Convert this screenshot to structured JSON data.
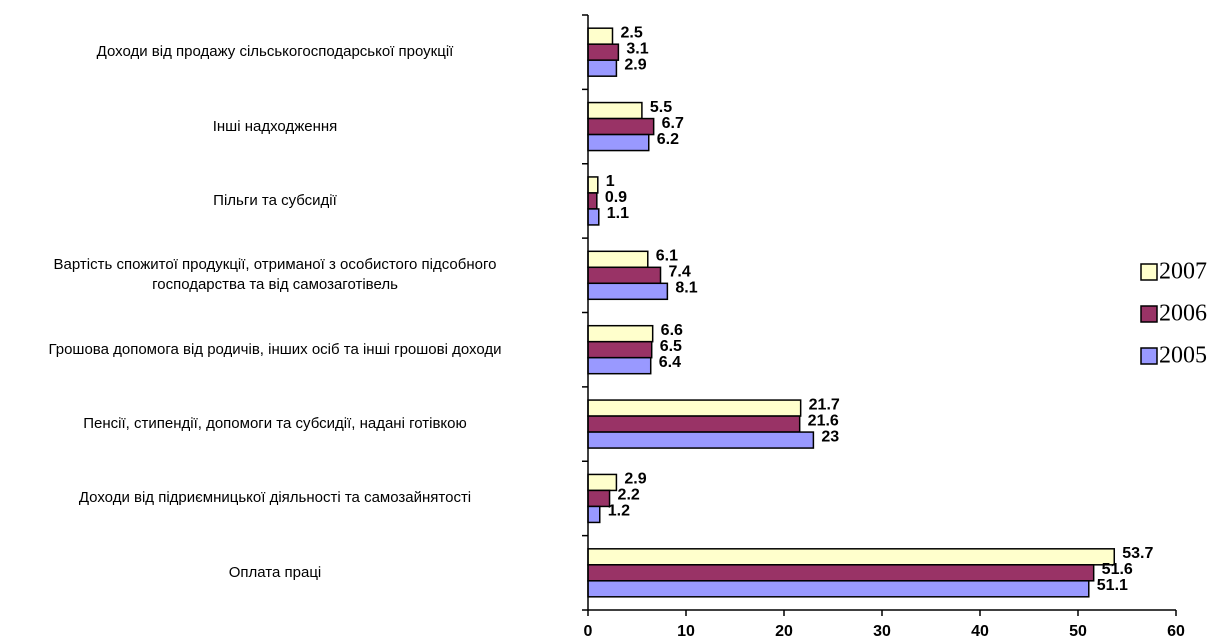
{
  "chart_data": {
    "type": "bar",
    "orientation": "horizontal",
    "categories": [
      "Доходи від продажу сільськогосподарської проукції",
      "Інші надходження",
      "Пільги та субсидії",
      "Вартість спожитої продукції, отриманої з особистого підсобного\nгосподарства та від самозаготівель",
      "Грошова допомога від родичів, інших осіб та інші грошові доходи",
      "Пенсії, стипендії, допомоги та субсидії, надані готівкою",
      "Доходи від підриємницької діяльності та самозайнятості",
      "Оплата праці"
    ],
    "series": [
      {
        "name": "2007",
        "color": "#ffffcc",
        "values": [
          2.5,
          5.5,
          1,
          6.1,
          6.6,
          21.7,
          2.9,
          53.7
        ]
      },
      {
        "name": "2006",
        "color": "#993366",
        "values": [
          3.1,
          6.7,
          0.9,
          7.4,
          6.5,
          21.6,
          2.2,
          51.6
        ]
      },
      {
        "name": "2005",
        "color": "#9999ff",
        "values": [
          2.9,
          6.2,
          1.1,
          8.1,
          6.4,
          23,
          1.2,
          51.1
        ]
      }
    ],
    "xlim": [
      0,
      60
    ],
    "xticks": [
      0,
      10,
      20,
      30,
      40,
      50,
      60
    ],
    "legend": "right"
  }
}
